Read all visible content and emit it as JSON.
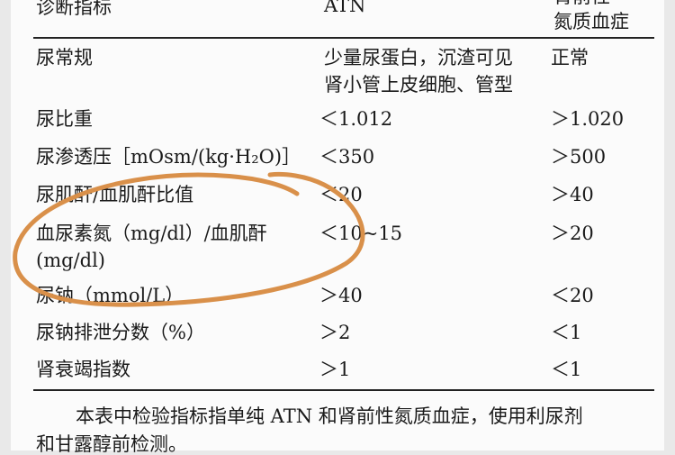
{
  "table": {
    "headers": [
      "诊断指标",
      "ATN",
      "肾前性",
      "氮质血症"
    ],
    "rows": [
      {
        "indicator": "尿常规",
        "indicator2": "",
        "atn": "少量尿蛋白，沉渣可见",
        "atn2": "肾小管上皮细胞、管型",
        "prerenal": "正常"
      },
      {
        "indicator": "尿比重",
        "indicator2": "",
        "atn": "＜1.012",
        "atn2": "",
        "prerenal": "＞1.020"
      },
      {
        "indicator": "尿渗透压［mOsm/(kg·H₂O)］",
        "indicator2": "",
        "atn": "＜350",
        "atn2": "",
        "prerenal": "＞500"
      },
      {
        "indicator": "尿肌酐/血肌酐比值",
        "indicator2": "",
        "atn": "＜20",
        "atn2": "",
        "prerenal": "＞40"
      },
      {
        "indicator": "血尿素氮（mg/dl）/血肌酐",
        "indicator2": "(mg/dl)",
        "atn": "＜10~15",
        "atn2": "",
        "prerenal": "＞20"
      },
      {
        "indicator": "尿钠（mmol/L）",
        "indicator2": "",
        "atn": "＞40",
        "atn2": "",
        "prerenal": "＜20"
      },
      {
        "indicator": "尿钠排泄分数（%）",
        "indicator2": "",
        "atn": "＞2",
        "atn2": "",
        "prerenal": "＜1"
      },
      {
        "indicator": "肾衰竭指数",
        "indicator2": "",
        "atn": "＞1",
        "atn2": "",
        "prerenal": "＜1"
      }
    ]
  },
  "note": [
    "本表中检验指标指单纯 ATN 和肾前性氮质血症，使用利尿剂",
    "和甘露醇前检测。"
  ],
  "annotation_color": "#d9904a"
}
